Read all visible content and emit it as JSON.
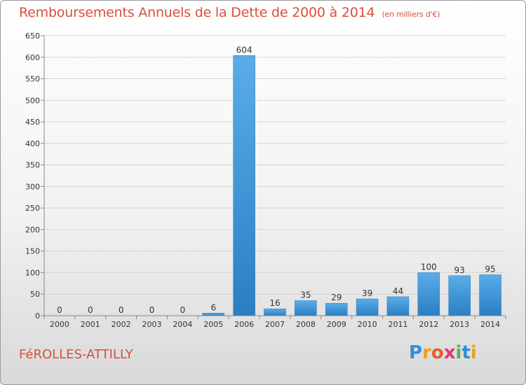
{
  "header": {
    "title": "Remboursements Annuels de la Dette de 2000 à 2014",
    "subtitle": "(en milliers d'€)"
  },
  "footer": {
    "commune": "FéROLLES-ATTILLY",
    "logo": {
      "letters": [
        "P",
        "r",
        "o",
        "x",
        "i",
        "t",
        "i"
      ],
      "colors": [
        "#2f8fd8",
        "#e8a21e",
        "#e85d2a",
        "#d93a7a",
        "#55b54a",
        "#2f8fd8",
        "#e8a21e"
      ]
    }
  },
  "chart_data": {
    "type": "bar",
    "categories": [
      "2000",
      "2001",
      "2002",
      "2003",
      "2004",
      "2005",
      "2006",
      "2007",
      "2008",
      "2009",
      "2010",
      "2011",
      "2012",
      "2013",
      "2014"
    ],
    "values": [
      0,
      0,
      0,
      0,
      0,
      6,
      604,
      16,
      35,
      29,
      39,
      44,
      100,
      93,
      95
    ],
    "ylim": [
      0,
      650
    ],
    "yticks": [
      0,
      50,
      100,
      150,
      200,
      250,
      300,
      350,
      400,
      450,
      500,
      550,
      600,
      650
    ],
    "grid": true,
    "bar_color": "#3b93dc"
  }
}
